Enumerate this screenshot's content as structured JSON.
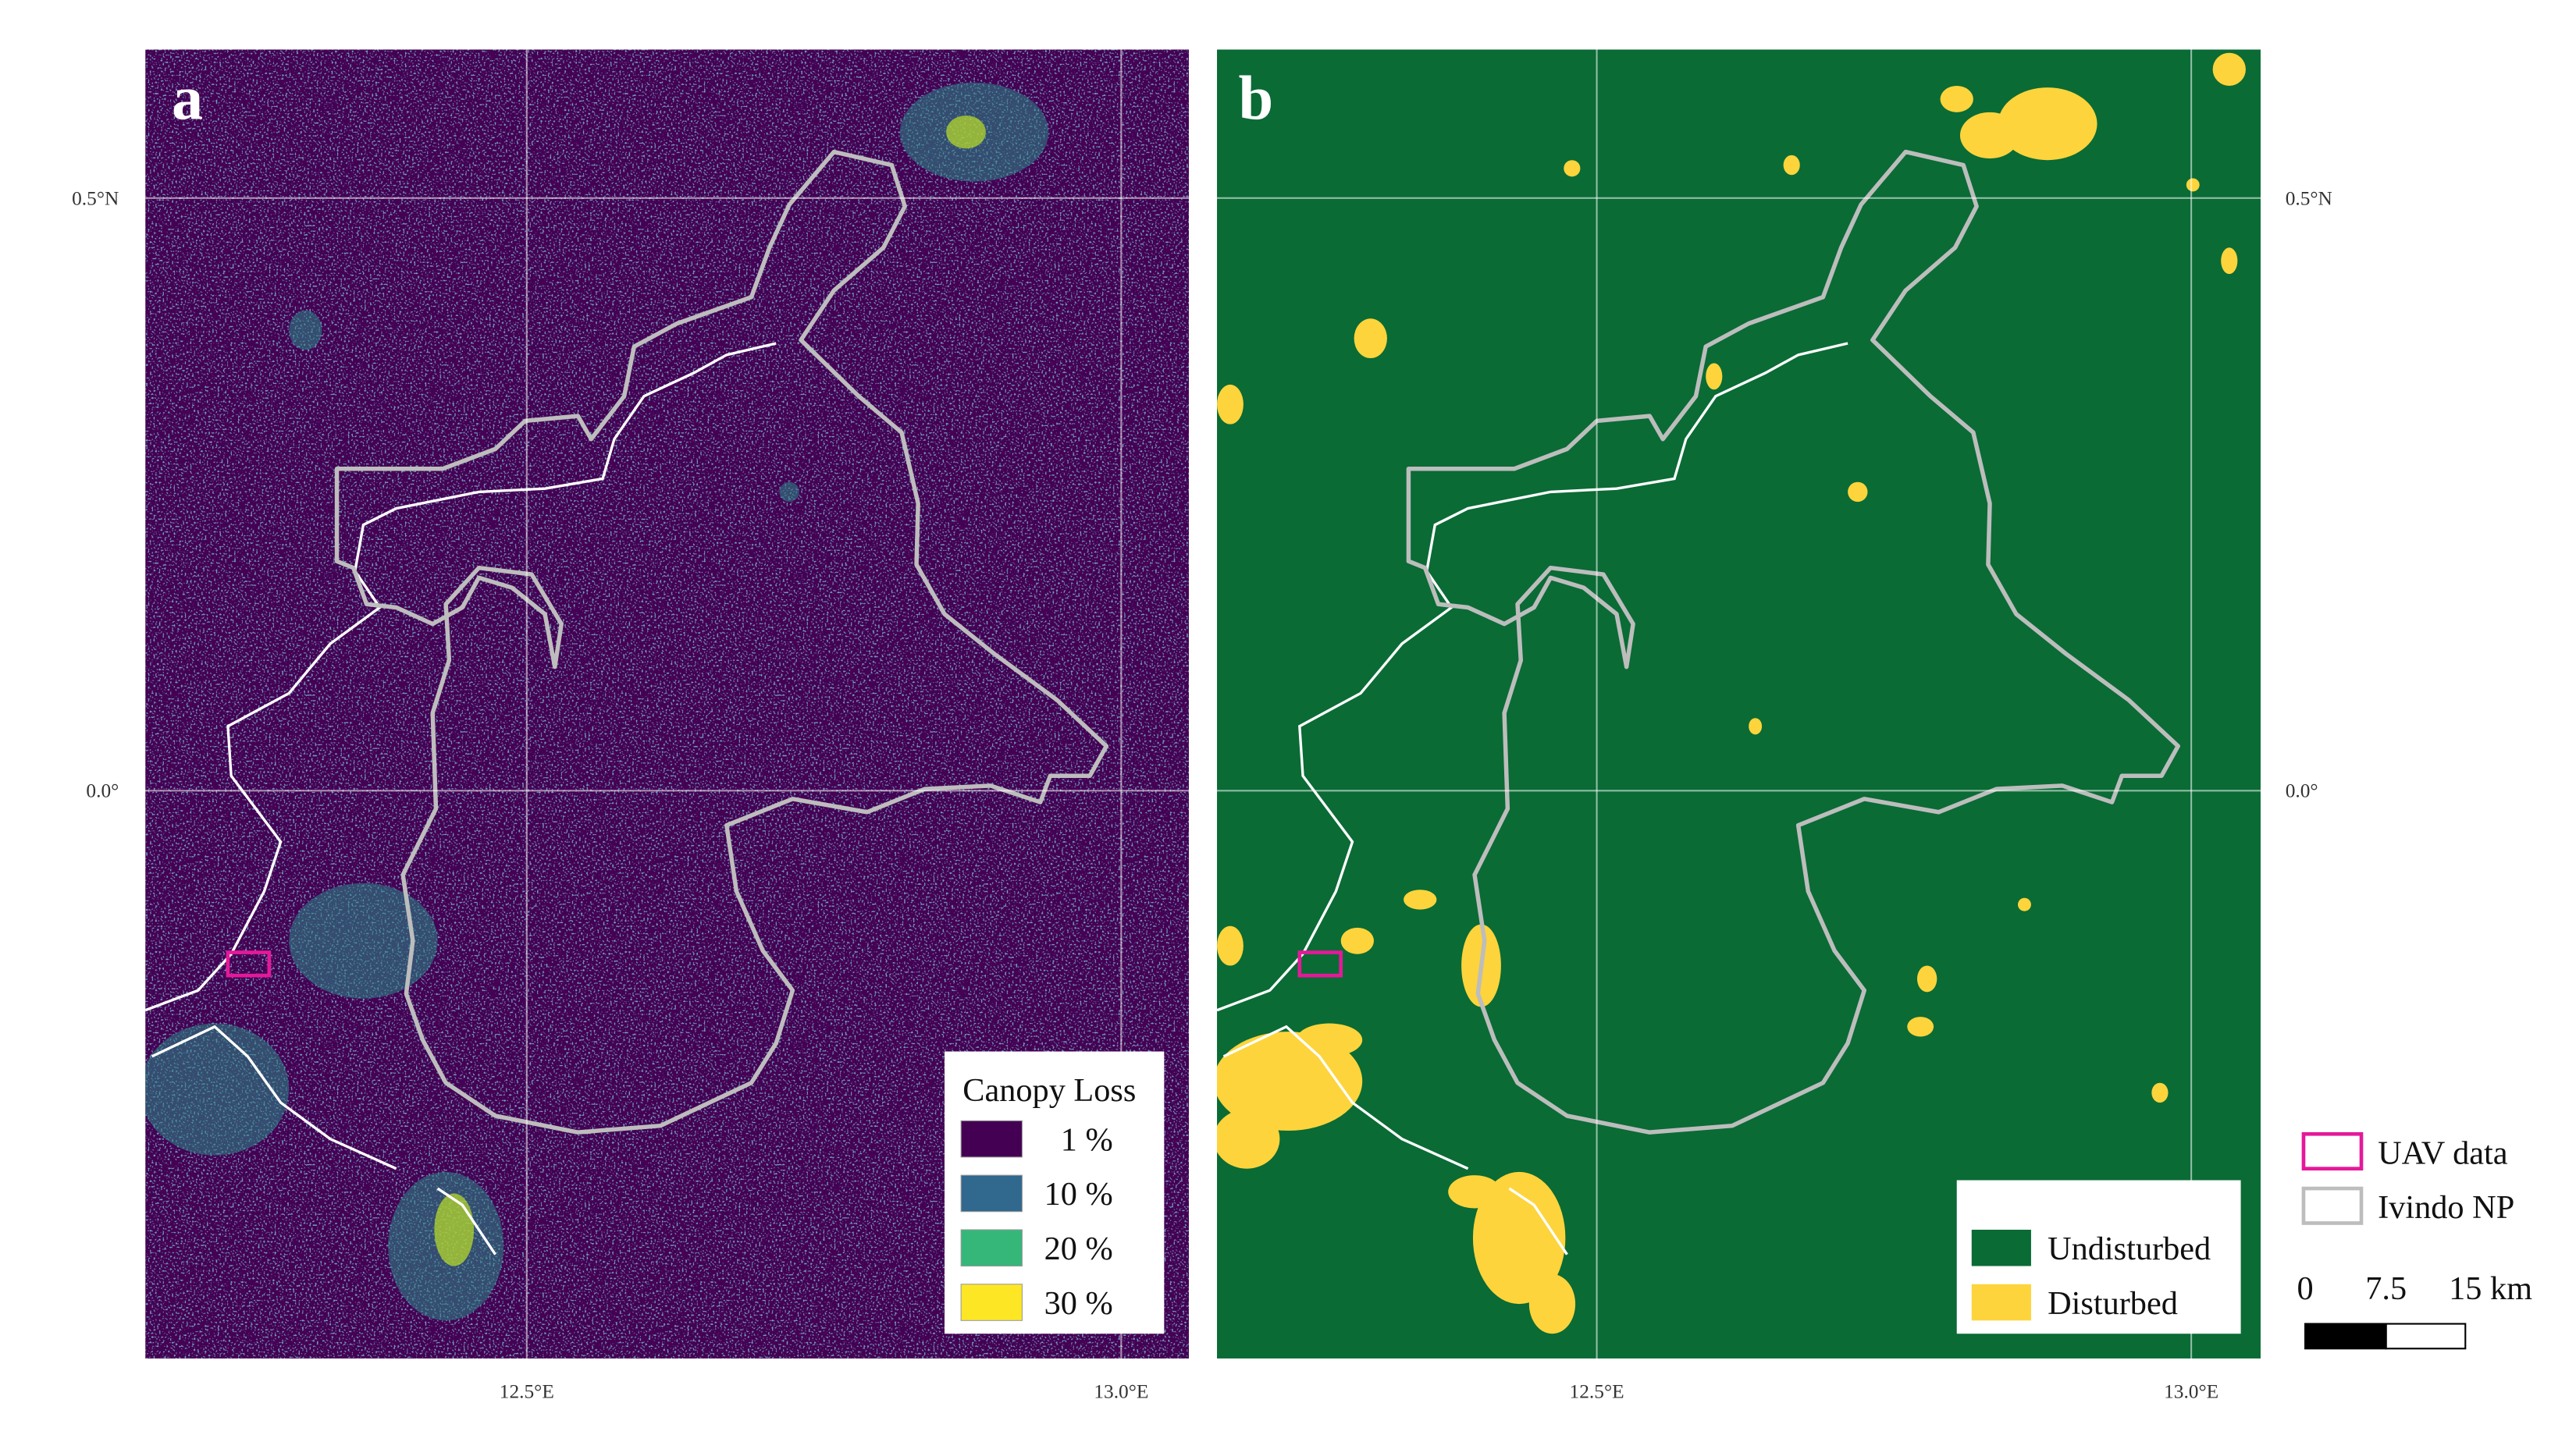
{
  "panels": [
    {
      "label": "a"
    },
    {
      "label": "b"
    }
  ],
  "grid_labels": {
    "lat": [
      "0.5°N",
      "0.0°"
    ],
    "lon": [
      "12.5°E",
      "13.0°E"
    ]
  },
  "legend_canopy": {
    "title": "Canopy Loss",
    "items": [
      "1 %",
      "10 %",
      "20 %",
      "30 %"
    ]
  },
  "legend_disturbance": {
    "items": [
      "Undisturbed",
      "Disturbed"
    ]
  },
  "legend_outline": {
    "items": [
      "UAV data",
      "Ivindo NP"
    ]
  },
  "scale_bar": {
    "labels": [
      "0",
      "7.5",
      "15 km"
    ]
  }
}
